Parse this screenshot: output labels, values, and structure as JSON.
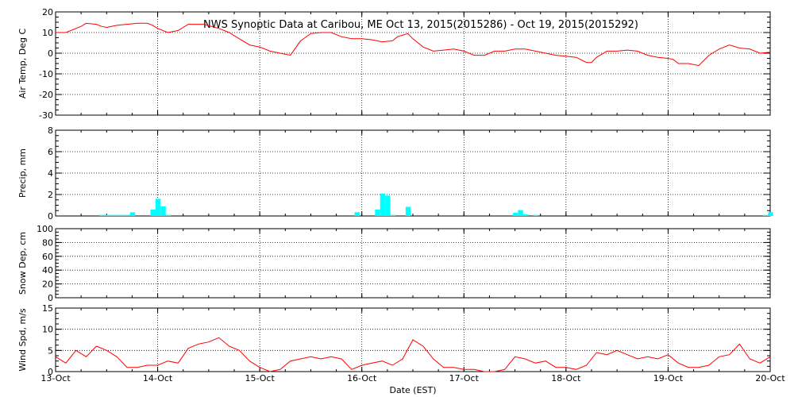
{
  "title": "NWS Synoptic Data at Caribou, ME   Oct 13, 2015(2015286) - Oct 19, 2015(2015292)",
  "colors": {
    "temp": "#ff0000",
    "precip": "#00ffff",
    "wind": "#ff0000",
    "axis": "#000000"
  },
  "chart_data": [
    {
      "type": "line",
      "ylabel": "Air Temp, Deg C",
      "ylim": [
        -30,
        20
      ],
      "yticks": [
        "-30",
        "-20",
        "-10",
        "0",
        "10",
        "20"
      ],
      "grid": true,
      "x_days": [
        0,
        0.1,
        0.2,
        0.25,
        0.3,
        0.4,
        0.45,
        0.5,
        0.6,
        0.7,
        0.8,
        0.9,
        0.95,
        1.0,
        1.1,
        1.2,
        1.3,
        1.45,
        1.6,
        1.7,
        1.8,
        1.9,
        2.0,
        2.1,
        2.2,
        2.3,
        2.4,
        2.5,
        2.6,
        2.7,
        2.8,
        2.9,
        3.0,
        3.1,
        3.2,
        3.3,
        3.35,
        3.45,
        3.5,
        3.6,
        3.7,
        3.8,
        3.9,
        4.0,
        4.1,
        4.2,
        4.3,
        4.4,
        4.5,
        4.6,
        4.7,
        4.8,
        4.9,
        5.0,
        5.1,
        5.2,
        5.25,
        5.3,
        5.4,
        5.5,
        5.6,
        5.7,
        5.8,
        5.9,
        6.0,
        6.05,
        6.1,
        6.2,
        6.3,
        6.4,
        6.5,
        6.6,
        6.7,
        6.8,
        6.9,
        7.0
      ],
      "values": [
        10,
        10,
        12,
        13,
        14.5,
        14,
        13,
        12.5,
        13.5,
        14,
        14.5,
        14.5,
        13.5,
        12,
        10,
        11,
        14,
        14,
        12,
        10,
        7,
        4,
        3,
        1,
        0,
        -1,
        6,
        9.5,
        10,
        10,
        8,
        7,
        7,
        6.5,
        5.5,
        6,
        8,
        9.5,
        7,
        3,
        1,
        1.5,
        2,
        1,
        -1,
        -1,
        1,
        1,
        2,
        2,
        1,
        0,
        -1,
        -1.5,
        -2,
        -4.5,
        -4.5,
        -2,
        1,
        1,
        1.5,
        1,
        -1,
        -2,
        -2.5,
        -3,
        -5,
        -5,
        -6,
        -1,
        2,
        4,
        2.5,
        2,
        0,
        0.5
      ]
    },
    {
      "type": "bar",
      "ylabel": "Precip, mm",
      "ylim": [
        0,
        8
      ],
      "yticks": [
        "0",
        "2",
        "4",
        "6",
        "8"
      ],
      "grid": true,
      "x_days": [
        0.45,
        0.5,
        0.55,
        0.6,
        0.65,
        0.7,
        0.75,
        0.95,
        1.0,
        1.05,
        1.1,
        2.95,
        3.15,
        3.2,
        3.25,
        3.3,
        3.45,
        4.5,
        4.55,
        4.6,
        4.7,
        6.95,
        7.0
      ],
      "values": [
        0.1,
        0.1,
        0.1,
        0.1,
        0.1,
        0.1,
        0.35,
        0.6,
        1.6,
        0.9,
        0.1,
        0.35,
        0.6,
        2.1,
        1.9,
        0.1,
        0.85,
        0.3,
        0.55,
        0.15,
        0.1,
        0.1,
        0.35
      ]
    },
    {
      "type": "line",
      "ylabel": "Snow Dep, cm",
      "ylim": [
        0,
        100
      ],
      "yticks": [
        "0",
        "20",
        "40",
        "60",
        "80",
        "100"
      ],
      "grid": true,
      "x_days": [],
      "values": []
    },
    {
      "type": "line",
      "ylabel": "Wind Spd, m/s",
      "xlabel": "Date (EST)",
      "ylim": [
        0,
        15
      ],
      "yticks": [
        "0",
        "5",
        "10",
        "15"
      ],
      "grid": true,
      "x_days": [
        0,
        0.1,
        0.2,
        0.3,
        0.4,
        0.5,
        0.6,
        0.7,
        0.8,
        0.9,
        1.0,
        1.1,
        1.2,
        1.3,
        1.4,
        1.5,
        1.6,
        1.7,
        1.8,
        1.9,
        2.0,
        2.1,
        2.2,
        2.3,
        2.4,
        2.5,
        2.6,
        2.7,
        2.8,
        2.9,
        3.0,
        3.1,
        3.2,
        3.3,
        3.4,
        3.5,
        3.6,
        3.7,
        3.8,
        3.9,
        4.0,
        4.1,
        4.2,
        4.3,
        4.4,
        4.5,
        4.6,
        4.7,
        4.8,
        4.9,
        5.0,
        5.1,
        5.2,
        5.3,
        5.4,
        5.5,
        5.6,
        5.7,
        5.8,
        5.9,
        6.0,
        6.1,
        6.2,
        6.3,
        6.4,
        6.5,
        6.6,
        6.7,
        6.8,
        6.9,
        7.0
      ],
      "values": [
        3.5,
        2,
        5,
        3.5,
        6,
        5,
        3.5,
        1,
        1,
        1.5,
        1.5,
        2.5,
        2,
        5.5,
        6.5,
        7,
        8,
        6,
        5,
        2.5,
        1,
        0,
        0.5,
        2.5,
        3,
        3.5,
        3,
        3.5,
        3,
        0.5,
        1.5,
        2,
        2.5,
        1.5,
        3,
        7.5,
        6,
        3,
        1,
        1,
        0.5,
        0.5,
        0,
        0,
        0.5,
        3.5,
        3,
        2,
        2.5,
        1,
        1,
        0.5,
        1.5,
        4.5,
        4,
        5,
        4,
        3,
        3.5,
        3,
        4,
        2,
        1,
        1,
        1.5,
        3.5,
        4,
        6.5,
        3,
        2,
        3.5
      ]
    }
  ],
  "x_ticks": [
    "13-Oct",
    "14-Oct",
    "15-Oct",
    "16-Oct",
    "17-Oct",
    "18-Oct",
    "19-Oct",
    "20-Oct"
  ]
}
